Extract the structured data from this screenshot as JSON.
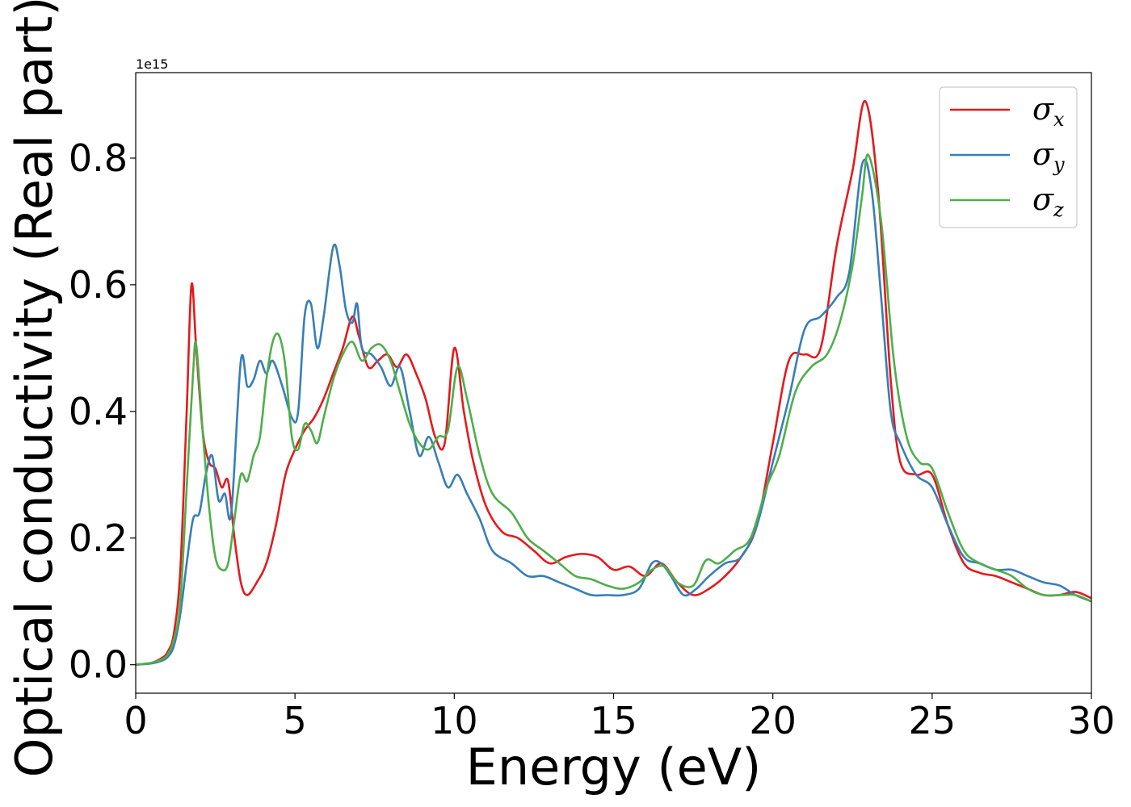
{
  "chart_data": {
    "type": "line",
    "title": "",
    "xlabel": "Energy (eV)",
    "ylabel": "Optical conductivity (Real part)",
    "y_offset_text": "1e15",
    "xlim": [
      0,
      30
    ],
    "ylim": [
      -0.045,
      0.935
    ],
    "xticks": [
      0,
      5,
      10,
      15,
      20,
      25,
      30
    ],
    "xtick_labels": [
      "0",
      "5",
      "10",
      "15",
      "20",
      "25",
      "30"
    ],
    "yticks": [
      0.0,
      0.2,
      0.4,
      0.6,
      0.8
    ],
    "ytick_labels": [
      "0.0",
      "0.2",
      "0.4",
      "0.6",
      "0.8"
    ],
    "grid": false,
    "legend_position": "top-right",
    "series": [
      {
        "name": "σx",
        "symbol": "σ",
        "subscript": "x",
        "color": "#e41a1c",
        "x": [
          0,
          0.5,
          0.8,
          1.0,
          1.2,
          1.4,
          1.6,
          1.75,
          1.9,
          2.1,
          2.3,
          2.5,
          2.7,
          2.9,
          3.1,
          3.3,
          3.5,
          3.8,
          4.1,
          4.4,
          4.7,
          5.0,
          5.3,
          5.6,
          5.9,
          6.2,
          6.5,
          6.8,
          7.0,
          7.3,
          7.6,
          7.9,
          8.2,
          8.5,
          8.8,
          9.1,
          9.4,
          9.7,
          10.0,
          10.3,
          10.6,
          11.0,
          11.5,
          12.0,
          12.5,
          13.0,
          13.5,
          14.0,
          14.5,
          15.0,
          15.5,
          16.0,
          16.5,
          17.0,
          17.5,
          18.0,
          18.5,
          19.0,
          19.5,
          20.0,
          20.5,
          21.0,
          21.5,
          22.0,
          22.5,
          22.9,
          23.3,
          23.7,
          24.0,
          24.5,
          25.0,
          25.5,
          26.0,
          26.5,
          27.0,
          27.5,
          28.0,
          28.5,
          29.0,
          29.5,
          30.0
        ],
        "y": [
          0.0,
          0.003,
          0.01,
          0.02,
          0.05,
          0.15,
          0.4,
          0.6,
          0.5,
          0.37,
          0.32,
          0.31,
          0.28,
          0.29,
          0.2,
          0.13,
          0.11,
          0.13,
          0.16,
          0.22,
          0.3,
          0.34,
          0.37,
          0.39,
          0.42,
          0.46,
          0.5,
          0.55,
          0.52,
          0.47,
          0.48,
          0.49,
          0.47,
          0.49,
          0.46,
          0.42,
          0.36,
          0.35,
          0.5,
          0.4,
          0.32,
          0.25,
          0.21,
          0.2,
          0.18,
          0.16,
          0.17,
          0.175,
          0.17,
          0.15,
          0.155,
          0.14,
          0.16,
          0.13,
          0.11,
          0.12,
          0.14,
          0.17,
          0.22,
          0.35,
          0.48,
          0.49,
          0.5,
          0.66,
          0.78,
          0.89,
          0.75,
          0.45,
          0.32,
          0.3,
          0.3,
          0.22,
          0.16,
          0.145,
          0.14,
          0.13,
          0.12,
          0.11,
          0.11,
          0.115,
          0.105
        ]
      },
      {
        "name": "σy",
        "symbol": "σ",
        "subscript": "y",
        "color": "#377eb8",
        "x": [
          0,
          0.5,
          0.8,
          1.0,
          1.2,
          1.4,
          1.6,
          1.8,
          2.0,
          2.2,
          2.4,
          2.6,
          2.8,
          3.0,
          3.3,
          3.5,
          3.7,
          3.9,
          4.1,
          4.3,
          4.6,
          4.9,
          5.1,
          5.3,
          5.5,
          5.7,
          5.9,
          6.2,
          6.4,
          6.6,
          6.8,
          6.95,
          7.1,
          7.4,
          7.7,
          8.0,
          8.3,
          8.6,
          8.9,
          9.2,
          9.5,
          9.8,
          10.1,
          10.4,
          10.8,
          11.2,
          11.8,
          12.3,
          12.8,
          13.3,
          13.8,
          14.3,
          14.8,
          15.3,
          15.8,
          16.2,
          16.5,
          16.8,
          17.2,
          17.6,
          18.0,
          18.5,
          19.0,
          19.5,
          20.0,
          20.5,
          21.0,
          21.5,
          22.0,
          22.4,
          22.8,
          23.1,
          23.4,
          23.7,
          24.0,
          24.5,
          25.0,
          25.5,
          26.0,
          26.5,
          27.0,
          27.5,
          28.0,
          28.5,
          29.0,
          29.5,
          30.0
        ],
        "y": [
          0.0,
          0.002,
          0.006,
          0.012,
          0.03,
          0.08,
          0.16,
          0.23,
          0.24,
          0.3,
          0.33,
          0.26,
          0.27,
          0.24,
          0.48,
          0.44,
          0.45,
          0.48,
          0.46,
          0.48,
          0.44,
          0.39,
          0.4,
          0.55,
          0.57,
          0.5,
          0.55,
          0.66,
          0.63,
          0.56,
          0.54,
          0.57,
          0.5,
          0.49,
          0.47,
          0.44,
          0.47,
          0.4,
          0.33,
          0.36,
          0.32,
          0.28,
          0.3,
          0.27,
          0.23,
          0.18,
          0.16,
          0.14,
          0.14,
          0.13,
          0.12,
          0.11,
          0.11,
          0.11,
          0.12,
          0.16,
          0.16,
          0.14,
          0.11,
          0.12,
          0.14,
          0.16,
          0.17,
          0.22,
          0.32,
          0.42,
          0.53,
          0.55,
          0.58,
          0.62,
          0.79,
          0.75,
          0.58,
          0.4,
          0.35,
          0.3,
          0.28,
          0.22,
          0.17,
          0.16,
          0.15,
          0.15,
          0.14,
          0.13,
          0.125,
          0.11,
          0.1
        ]
      },
      {
        "name": "σz",
        "symbol": "σ",
        "subscript": "z",
        "color": "#4daf4a",
        "x": [
          0,
          0.5,
          0.8,
          1.0,
          1.2,
          1.4,
          1.6,
          1.8,
          1.9,
          2.1,
          2.3,
          2.5,
          2.7,
          2.9,
          3.1,
          3.3,
          3.5,
          3.7,
          3.9,
          4.1,
          4.3,
          4.5,
          4.7,
          4.9,
          5.1,
          5.3,
          5.5,
          5.7,
          5.9,
          6.2,
          6.5,
          6.8,
          7.1,
          7.4,
          7.7,
          8.0,
          8.3,
          8.6,
          8.9,
          9.2,
          9.5,
          9.8,
          10.1,
          10.4,
          10.8,
          11.2,
          11.8,
          12.3,
          12.8,
          13.3,
          13.8,
          14.3,
          14.8,
          15.3,
          15.8,
          16.2,
          16.6,
          17.0,
          17.5,
          17.9,
          18.3,
          18.8,
          19.3,
          19.8,
          20.2,
          20.7,
          21.2,
          21.7,
          22.1,
          22.5,
          22.8,
          23.0,
          23.4,
          23.8,
          24.2,
          24.6,
          25.0,
          25.5,
          26.0,
          26.5,
          27.0,
          27.5,
          28.0,
          28.5,
          29.0,
          29.5,
          30.0
        ],
        "y": [
          0.0,
          0.003,
          0.008,
          0.016,
          0.04,
          0.1,
          0.28,
          0.46,
          0.505,
          0.37,
          0.25,
          0.17,
          0.15,
          0.16,
          0.23,
          0.3,
          0.29,
          0.33,
          0.36,
          0.45,
          0.51,
          0.52,
          0.47,
          0.36,
          0.34,
          0.38,
          0.37,
          0.35,
          0.39,
          0.45,
          0.49,
          0.51,
          0.48,
          0.5,
          0.505,
          0.48,
          0.43,
          0.38,
          0.35,
          0.34,
          0.36,
          0.37,
          0.47,
          0.42,
          0.33,
          0.27,
          0.24,
          0.2,
          0.18,
          0.16,
          0.14,
          0.135,
          0.125,
          0.12,
          0.13,
          0.15,
          0.155,
          0.13,
          0.125,
          0.165,
          0.16,
          0.18,
          0.2,
          0.28,
          0.33,
          0.43,
          0.47,
          0.49,
          0.54,
          0.63,
          0.74,
          0.805,
          0.7,
          0.48,
          0.36,
          0.32,
          0.31,
          0.24,
          0.18,
          0.16,
          0.15,
          0.14,
          0.12,
          0.11,
          0.11,
          0.11,
          0.1
        ]
      }
    ]
  }
}
